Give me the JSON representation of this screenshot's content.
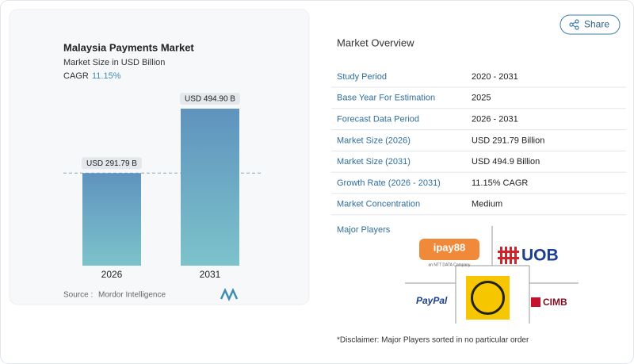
{
  "share": "Share",
  "chart_data": {
    "type": "bar",
    "title": "Malaysia Payments Market",
    "subtitle": "Market Size in USD Billion",
    "cagr_label": "CAGR",
    "cagr": "11.15%",
    "categories": [
      "2026",
      "2031"
    ],
    "values": [
      291.79,
      494.9
    ],
    "value_labels": [
      "USD 291.79 B",
      "USD 494.90 B"
    ],
    "source_label": "Source :",
    "source": "Mordor Intelligence"
  },
  "overview": {
    "title": "Market Overview",
    "rows": [
      [
        "Study Period",
        "2020 - 2031"
      ],
      [
        "Base Year For Estimation",
        "2025"
      ],
      [
        "Forecast Data Period",
        "2026 - 2031"
      ],
      [
        "Market Size (2026)",
        "USD 291.79 Billion"
      ],
      [
        "Market Size (2031)",
        "USD 494.9 Billion"
      ],
      [
        "Growth Rate (2026 - 2031)",
        "11.15% CAGR"
      ],
      [
        "Market Concentration",
        "Medium"
      ]
    ]
  },
  "players": {
    "title": "Major Players",
    "ipay": "ipay88",
    "ipay_sub": "an NTT DATA Company",
    "uob": "UOB",
    "paypal": "PayPal",
    "cimb": "CIMB"
  },
  "disclaimer": "*Disclaimer: Major Players sorted in no particular order"
}
